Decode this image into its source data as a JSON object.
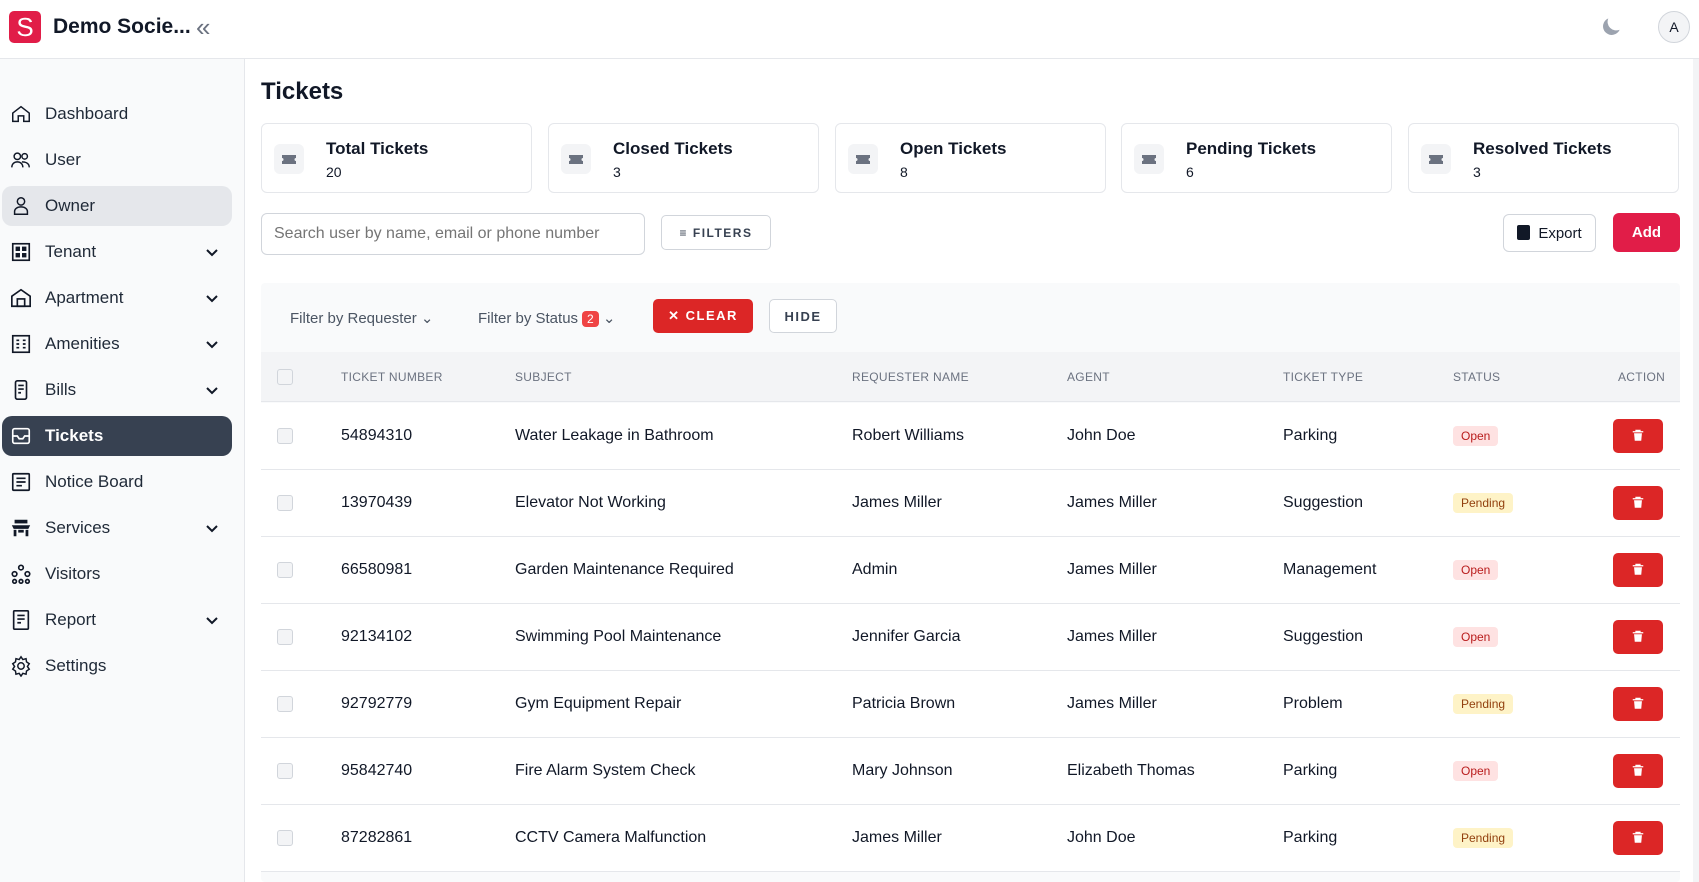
{
  "app": {
    "logo_letter": "S",
    "brand": "Demo Socie...",
    "avatar": "A"
  },
  "sidebar": {
    "items": [
      {
        "label": "Dashboard",
        "icon": "home-icon",
        "expandable": false
      },
      {
        "label": "User",
        "icon": "users-icon",
        "expandable": false
      },
      {
        "label": "Owner",
        "icon": "user-icon",
        "expandable": false
      },
      {
        "label": "Tenant",
        "icon": "grid-icon",
        "expandable": true
      },
      {
        "label": "Apartment",
        "icon": "building-icon",
        "expandable": true
      },
      {
        "label": "Amenities",
        "icon": "amenities-icon",
        "expandable": true
      },
      {
        "label": "Bills",
        "icon": "bill-icon",
        "expandable": true
      },
      {
        "label": "Tickets",
        "icon": "ticket-icon",
        "expandable": false
      },
      {
        "label": "Notice Board",
        "icon": "notice-icon",
        "expandable": false
      },
      {
        "label": "Services",
        "icon": "services-icon",
        "expandable": true
      },
      {
        "label": "Visitors",
        "icon": "visitors-icon",
        "expandable": false
      },
      {
        "label": "Report",
        "icon": "report-icon",
        "expandable": true
      },
      {
        "label": "Settings",
        "icon": "gear-icon",
        "expandable": false
      }
    ]
  },
  "page": {
    "title": "Tickets"
  },
  "cards": [
    {
      "title": "Total Tickets",
      "value": "20"
    },
    {
      "title": "Closed Tickets",
      "value": "3"
    },
    {
      "title": "Open Tickets",
      "value": "8"
    },
    {
      "title": "Pending Tickets",
      "value": "6"
    },
    {
      "title": "Resolved Tickets",
      "value": "3"
    }
  ],
  "toolbar": {
    "search_placeholder": "Search user by name, email or phone number",
    "filters_label": "FILTERS",
    "export_label": "Export",
    "add_label": "Add"
  },
  "filterbar": {
    "requester_label": "Filter by Requester",
    "status_label": "Filter by Status",
    "status_count": "2",
    "clear_label": "CLEAR",
    "hide_label": "HIDE"
  },
  "table": {
    "headers": [
      "TICKET NUMBER",
      "SUBJECT",
      "REQUESTER NAME",
      "AGENT",
      "TICKET TYPE",
      "STATUS",
      "ACTION"
    ],
    "rows": [
      {
        "number": "54894310",
        "subject": "Water Leakage in Bathroom",
        "requester": "Robert Williams",
        "agent": "John Doe",
        "type": "Parking",
        "status": "Open"
      },
      {
        "number": "13970439",
        "subject": "Elevator Not Working",
        "requester": "James Miller",
        "agent": "James Miller",
        "type": "Suggestion",
        "status": "Pending"
      },
      {
        "number": "66580981",
        "subject": "Garden Maintenance Required",
        "requester": "Admin",
        "agent": "James Miller",
        "type": "Management",
        "status": "Open"
      },
      {
        "number": "92134102",
        "subject": "Swimming Pool Maintenance",
        "requester": "Jennifer Garcia",
        "agent": "James Miller",
        "type": "Suggestion",
        "status": "Open"
      },
      {
        "number": "92792779",
        "subject": "Gym Equipment Repair",
        "requester": "Patricia Brown",
        "agent": "James Miller",
        "type": "Problem",
        "status": "Pending"
      },
      {
        "number": "95842740",
        "subject": "Fire Alarm System Check",
        "requester": "Mary Johnson",
        "agent": "Elizabeth Thomas",
        "type": "Parking",
        "status": "Open"
      },
      {
        "number": "87282861",
        "subject": "CCTV Camera Malfunction",
        "requester": "James Miller",
        "agent": "John Doe",
        "type": "Parking",
        "status": "Pending"
      }
    ]
  },
  "colors": {
    "accent": "#e11d48",
    "danger": "#dc2626",
    "active_nav": "#374151"
  }
}
